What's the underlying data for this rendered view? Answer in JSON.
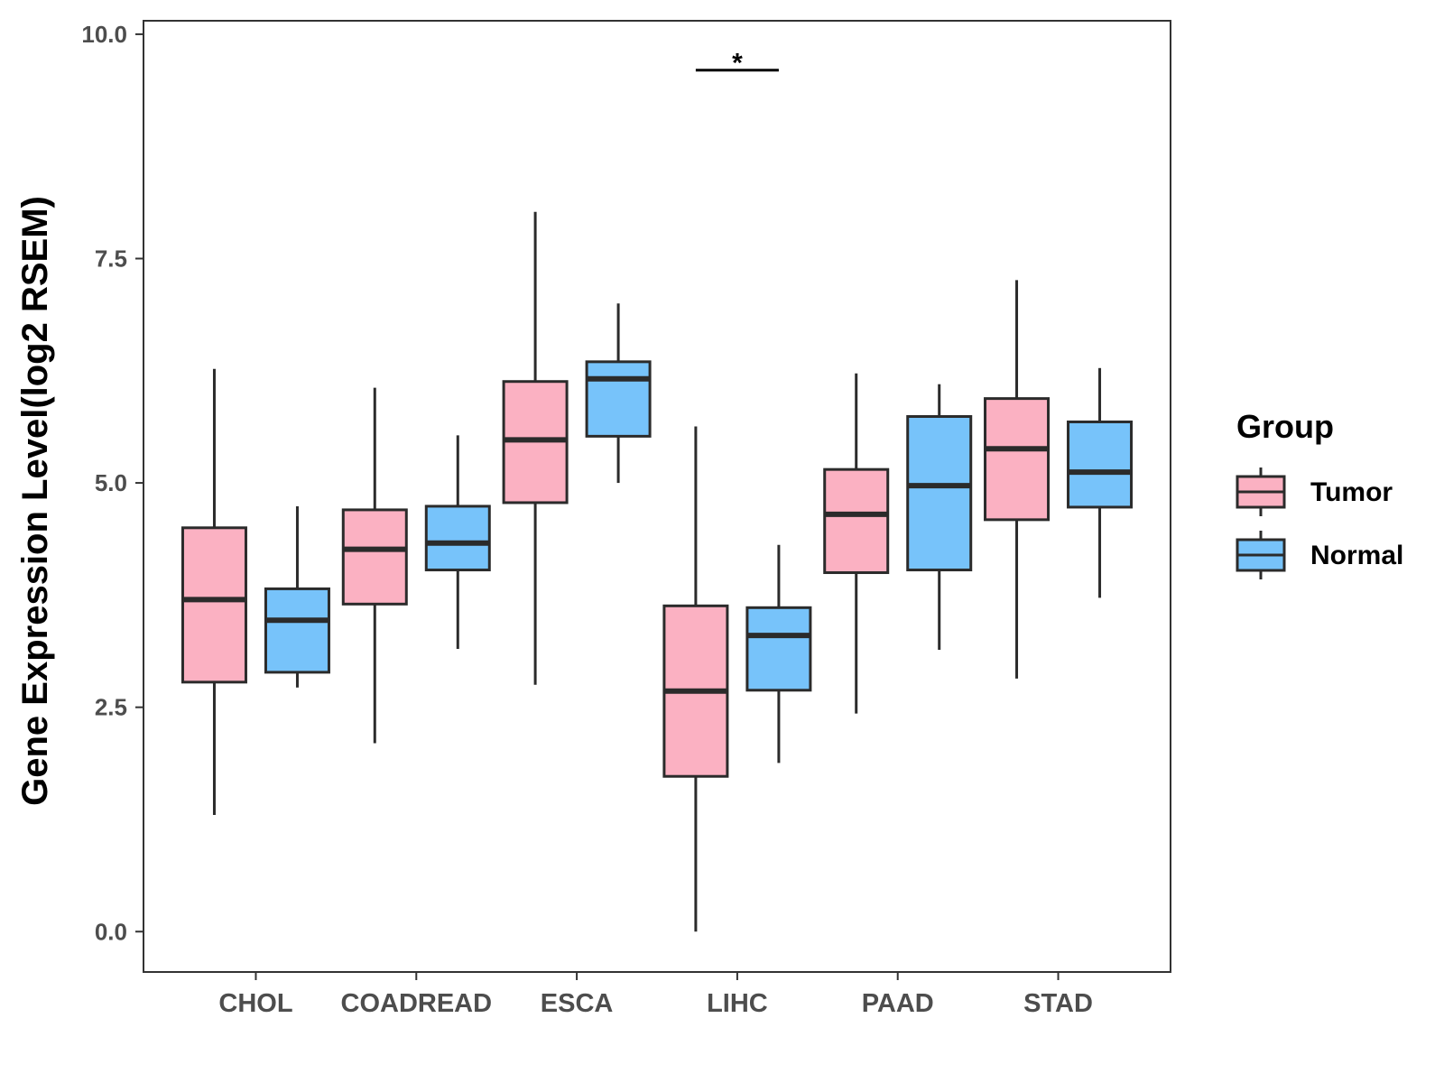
{
  "chart_data": {
    "type": "boxplot",
    "title": "",
    "xlabel": "",
    "ylabel": "Gene Expression Level(log2 RSEM)",
    "ylim": [
      -0.45,
      10.15
    ],
    "yticks": [
      0.0,
      2.5,
      5.0,
      7.5,
      10.0
    ],
    "ytick_labels": [
      "0.0",
      "2.5",
      "5.0",
      "7.5",
      "10.0"
    ],
    "grid": false,
    "categories": [
      "CHOL",
      "COADREAD",
      "ESCA",
      "LIHC",
      "PAAD",
      "STAD"
    ],
    "legend": {
      "title": "Group",
      "position": "right",
      "entries": [
        "Tumor",
        "Normal"
      ]
    },
    "series": [
      {
        "name": "Tumor",
        "color": "#fbb1c2",
        "boxes": [
          {
            "min": 1.3,
            "q1": 2.78,
            "median": 3.7,
            "q3": 4.5,
            "max": 6.27
          },
          {
            "min": 2.1,
            "q1": 3.65,
            "median": 4.26,
            "q3": 4.7,
            "max": 6.06
          },
          {
            "min": 2.75,
            "q1": 4.78,
            "median": 5.48,
            "q3": 6.13,
            "max": 8.02
          },
          {
            "min": 0.0,
            "q1": 1.73,
            "median": 2.68,
            "q3": 3.63,
            "max": 5.63
          },
          {
            "min": 2.43,
            "q1": 4.0,
            "median": 4.65,
            "q3": 5.15,
            "max": 6.22
          },
          {
            "min": 2.82,
            "q1": 4.59,
            "median": 5.38,
            "q3": 5.94,
            "max": 7.26
          }
        ]
      },
      {
        "name": "Normal",
        "color": "#77c3fa",
        "boxes": [
          {
            "min": 2.72,
            "q1": 2.89,
            "median": 3.47,
            "q3": 3.82,
            "max": 4.74
          },
          {
            "min": 3.15,
            "q1": 4.03,
            "median": 4.33,
            "q3": 4.74,
            "max": 5.53
          },
          {
            "min": 5.0,
            "q1": 5.52,
            "median": 6.16,
            "q3": 6.35,
            "max": 7.0
          },
          {
            "min": 1.88,
            "q1": 2.69,
            "median": 3.3,
            "q3": 3.61,
            "max": 4.31
          },
          {
            "min": 3.14,
            "q1": 4.03,
            "median": 4.97,
            "q3": 5.74,
            "max": 6.1
          },
          {
            "min": 3.72,
            "q1": 4.73,
            "median": 5.12,
            "q3": 5.68,
            "max": 6.28
          }
        ]
      }
    ],
    "annotations": [
      {
        "category": "LIHC",
        "text": "*",
        "y": 9.6
      }
    ]
  }
}
